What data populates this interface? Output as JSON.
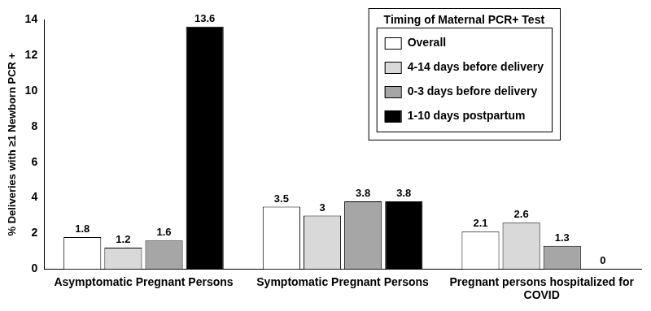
{
  "chart_data": {
    "type": "bar",
    "y_label": "% Deliveries with ≥1 Newborn PCR +",
    "legend_title": "Timing of Maternal PCR+ Test",
    "categories": [
      "Asymptomatic Pregnant Persons",
      "Symptomatic Pregnant Persons",
      "Pregnant persons hospitalized for COVID"
    ],
    "series": [
      {
        "name": "Overall",
        "color": "#ffffff",
        "values": [
          1.8,
          3.5,
          2.1
        ]
      },
      {
        "name": "4-14 days before delivery",
        "color": "#d9d9d9",
        "values": [
          1.2,
          3,
          2.6
        ]
      },
      {
        "name": "0-3 days before delivery",
        "color": "#a6a6a6",
        "values": [
          1.6,
          3.8,
          1.3
        ]
      },
      {
        "name": "1-10 days postpartum",
        "color": "#000000",
        "values": [
          13.6,
          3.8,
          0
        ]
      }
    ],
    "ylim": [
      0,
      14
    ],
    "yticks": [
      0,
      2,
      4,
      6,
      8,
      10,
      12,
      14
    ],
    "grid": false,
    "legend": "top-right",
    "data_labels": true
  }
}
